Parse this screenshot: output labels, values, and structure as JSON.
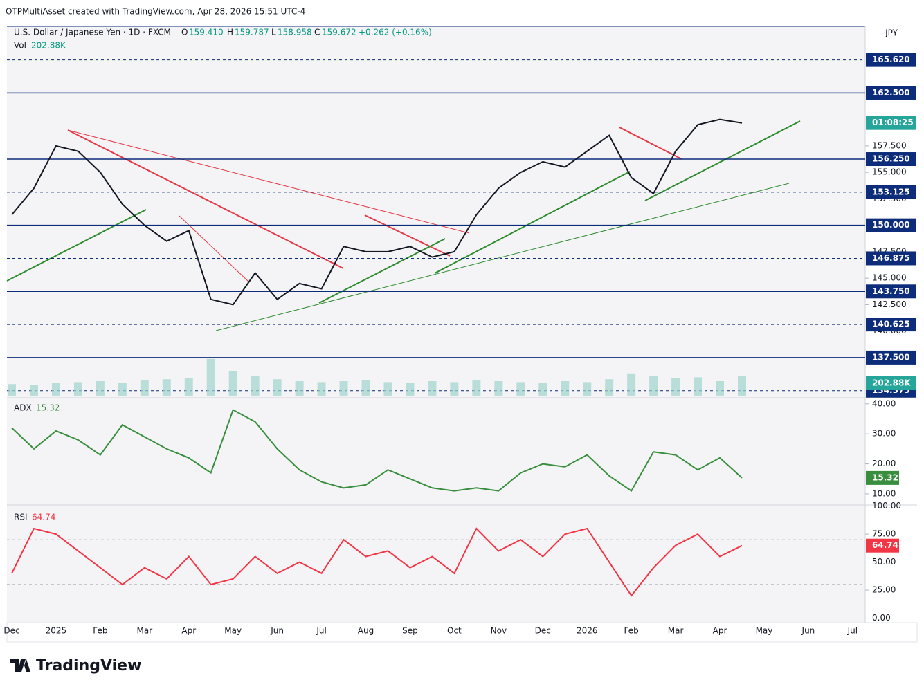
{
  "header": "OTPMultiAsset created with TradingView.com, Apr 28, 2026 15:51 UTC-4",
  "legend": {
    "symbol": "U.S. Dollar / Japanese Yen · 1D · FXCM",
    "o": "O",
    "open": "159.410",
    "h": "H",
    "high": "159.787",
    "l": "L",
    "low": "158.958",
    "c": "C",
    "close": "159.672",
    "change": "+0.262 (+0.16%)",
    "vol": "Vol",
    "vol_value": "202.88K"
  },
  "currency": "JPY",
  "countdown": "01:08:25",
  "brand": "TradingView",
  "chart_data": [
    {
      "type": "line",
      "color": "#131722",
      "categories": [
        "Dec",
        null,
        "2025",
        null,
        "Feb",
        null,
        "Mar",
        null,
        "Apr",
        null,
        "May",
        null,
        "Jun",
        null,
        "Jul",
        null,
        "Aug",
        null,
        "Sep",
        null,
        "Oct",
        null,
        "Nov",
        null,
        "Dec",
        null,
        "2026",
        null,
        "Feb",
        null,
        "Mar",
        null,
        "Apr",
        null,
        "May",
        null,
        "Jun",
        null,
        "Jul",
        null
      ],
      "values": [
        151,
        153.5,
        157.5,
        157,
        155,
        152,
        150,
        148.5,
        149.5,
        143,
        142.5,
        145.5,
        143,
        144.5,
        144,
        148,
        147.5,
        147.5,
        148,
        147,
        147.5,
        151,
        153.5,
        155,
        156,
        155.5,
        157,
        158.5,
        154.5,
        153,
        157,
        159.5,
        160,
        159.672,
        null,
        null,
        null,
        null,
        null,
        null
      ],
      "volume": {
        "color": "#9fd4cf",
        "values": [
          120,
          110,
          130,
          140,
          150,
          130,
          160,
          170,
          180,
          380,
          250,
          200,
          170,
          150,
          140,
          150,
          160,
          140,
          130,
          150,
          140,
          160,
          150,
          140,
          130,
          150,
          140,
          170,
          230,
          200,
          180,
          190,
          150,
          202.88,
          null,
          null,
          null,
          null,
          null,
          null
        ],
        "value_labels": [
          null,
          null,
          null,
          null,
          null,
          null,
          null,
          null,
          null,
          null,
          null,
          null,
          null,
          null,
          null,
          null,
          null,
          null,
          null,
          null,
          null,
          null,
          null,
          null,
          null,
          null,
          null,
          null,
          null,
          null,
          null,
          null,
          null,
          "202.88K",
          null,
          null,
          null,
          null,
          null,
          null
        ]
      },
      "ylim": [
        133.9,
        168.8
      ],
      "yticks": [
        {
          "value": 140,
          "label": "140.000"
        },
        {
          "value": 142.5,
          "label": "142.500"
        },
        {
          "value": 145,
          "label": "145.000"
        },
        {
          "value": 147.5,
          "label": "147.500"
        },
        {
          "value": 152.5,
          "label": "152.500"
        },
        {
          "value": 155,
          "label": "155.000"
        },
        {
          "value": 157.5,
          "label": "157.500"
        }
      ],
      "levels": [
        {
          "value": 165.62,
          "label": "165.620",
          "style": "dashed"
        },
        {
          "value": 162.5,
          "label": "162.500",
          "style": "solid"
        },
        {
          "value": 156.25,
          "label": "156.250",
          "style": "solid"
        },
        {
          "value": 153.125,
          "label": "153.125",
          "style": "dashed"
        },
        {
          "value": 150,
          "label": "150.000",
          "style": "solid"
        },
        {
          "value": 146.875,
          "label": "146.875",
          "style": "dashed"
        },
        {
          "value": 143.75,
          "label": "143.750",
          "style": "solid"
        },
        {
          "value": 140.625,
          "label": "140.625",
          "style": "dashed"
        },
        {
          "value": 137.5,
          "label": "137.500",
          "style": "solid"
        },
        {
          "value": 134.375,
          "label": "134.375",
          "style": "dashed"
        }
      ],
      "level_color": "#0d2d7a"
    },
    {
      "type": "line",
      "name": "ADX",
      "color": "#388e3c",
      "values": [
        32,
        25,
        31,
        28,
        23,
        33,
        29,
        25,
        22,
        17,
        38,
        34,
        25,
        18,
        14,
        12,
        13,
        18,
        15,
        12,
        11,
        12,
        11,
        17,
        20,
        19,
        23,
        16,
        11,
        24,
        23,
        18,
        22,
        15.32,
        null,
        null,
        null,
        null,
        null,
        null
      ],
      "current_label": "15.32",
      "ylim": [
        6.3,
        41.8
      ],
      "yticks": [
        {
          "value": 10,
          "label": "10.00"
        },
        {
          "value": 20,
          "label": "20.00"
        },
        {
          "value": 30,
          "label": "30.00"
        },
        {
          "value": 40,
          "label": "40.00"
        }
      ]
    },
    {
      "type": "line",
      "name": "RSI",
      "color": "#f23645",
      "values": [
        40,
        80,
        75,
        60,
        45,
        30,
        45,
        35,
        55,
        30,
        35,
        55,
        40,
        50,
        40,
        70,
        55,
        60,
        45,
        55,
        40,
        80,
        60,
        70,
        55,
        75,
        80,
        50,
        20,
        45,
        65,
        75,
        55,
        64.74,
        null,
        null,
        null,
        null,
        null,
        null
      ],
      "current_label": "64.74",
      "ylim": [
        -4,
        101
      ],
      "bands": [
        30,
        70
      ],
      "yticks": [
        {
          "value": 0,
          "label": "0.00"
        },
        {
          "value": 25,
          "label": "25.00"
        },
        {
          "value": 50,
          "label": "50.00"
        },
        {
          "value": 75,
          "label": "75.00"
        },
        {
          "value": 100,
          "label": "100.00"
        }
      ]
    }
  ]
}
